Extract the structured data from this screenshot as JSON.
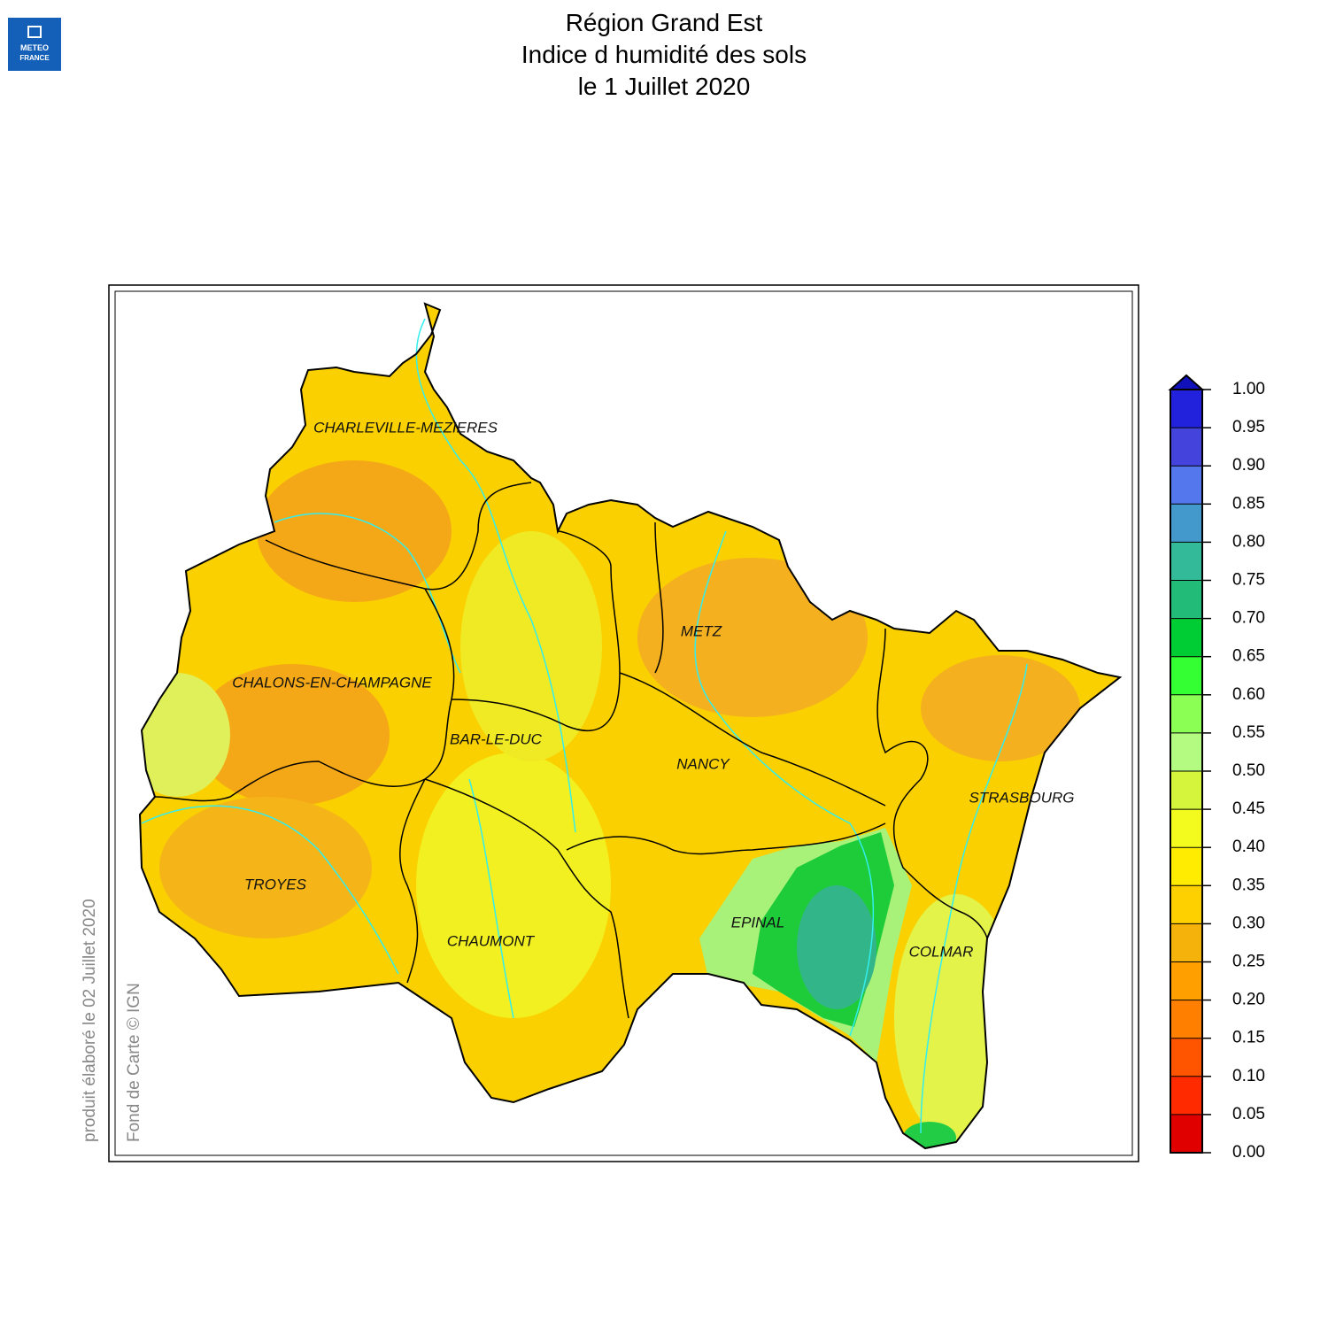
{
  "header": {
    "title": [
      "Région Grand Est",
      "Indice d humidité des sols",
      "le 1 Juillet 2020"
    ]
  },
  "logo": {
    "lines": [
      "METEO",
      "FRANCE"
    ]
  },
  "map": {
    "cities": [
      "CHARLEVILLE-MEZIERES",
      "METZ",
      "CHALONS-EN-CHAMPAGNE",
      "BAR-LE-DUC",
      "NANCY",
      "STRASBOURG",
      "TROYES",
      "EPINAL",
      "CHAUMONT",
      "COLMAR"
    ]
  },
  "colorbar": {
    "ticks": [
      {
        "value": 0,
        "label": "0.00"
      },
      {
        "value": 0.05,
        "label": "0.05"
      },
      {
        "value": 0.1,
        "label": "0.10"
      },
      {
        "value": 0.15,
        "label": "0.15"
      },
      {
        "value": 0.2,
        "label": "0.20"
      },
      {
        "value": 0.25,
        "label": "0.25"
      },
      {
        "value": 0.3,
        "label": "0.30"
      },
      {
        "value": 0.35,
        "label": "0.35"
      },
      {
        "value": 0.4,
        "label": "0.40"
      },
      {
        "value": 0.45,
        "label": "0.45"
      },
      {
        "value": 0.5,
        "label": "0.50"
      },
      {
        "value": 0.55,
        "label": "0.55"
      },
      {
        "value": 0.6,
        "label": "0.60"
      },
      {
        "value": 0.65,
        "label": "0.65"
      },
      {
        "value": 0.7,
        "label": "0.70"
      },
      {
        "value": 0.75,
        "label": "0.75"
      },
      {
        "value": 0.8,
        "label": "0.80"
      },
      {
        "value": 0.85,
        "label": "0.85"
      },
      {
        "value": 0.9,
        "label": "0.90"
      },
      {
        "value": 0.95,
        "label": "0.95"
      },
      {
        "value": 1,
        "label": "1.00"
      }
    ],
    "colors": [
      "#e00000",
      "#ff2a00",
      "#ff5500",
      "#ff7f00",
      "#ff9f00",
      "#f5b20a",
      "#ffd000",
      "#ffec00",
      "#f2fa1e",
      "#d4f53c",
      "#b4fb82",
      "#8cff55",
      "#33ff33",
      "#00cc33",
      "#22bb77",
      "#33bb99",
      "#4499cc",
      "#5577ee",
      "#4444dd",
      "#2222dd"
    ],
    "over_color": "#1111bb"
  },
  "footer": {
    "produced": "produit élaboré le 02 Juillet 2020",
    "credit": "Fond de Carte © IGN"
  }
}
